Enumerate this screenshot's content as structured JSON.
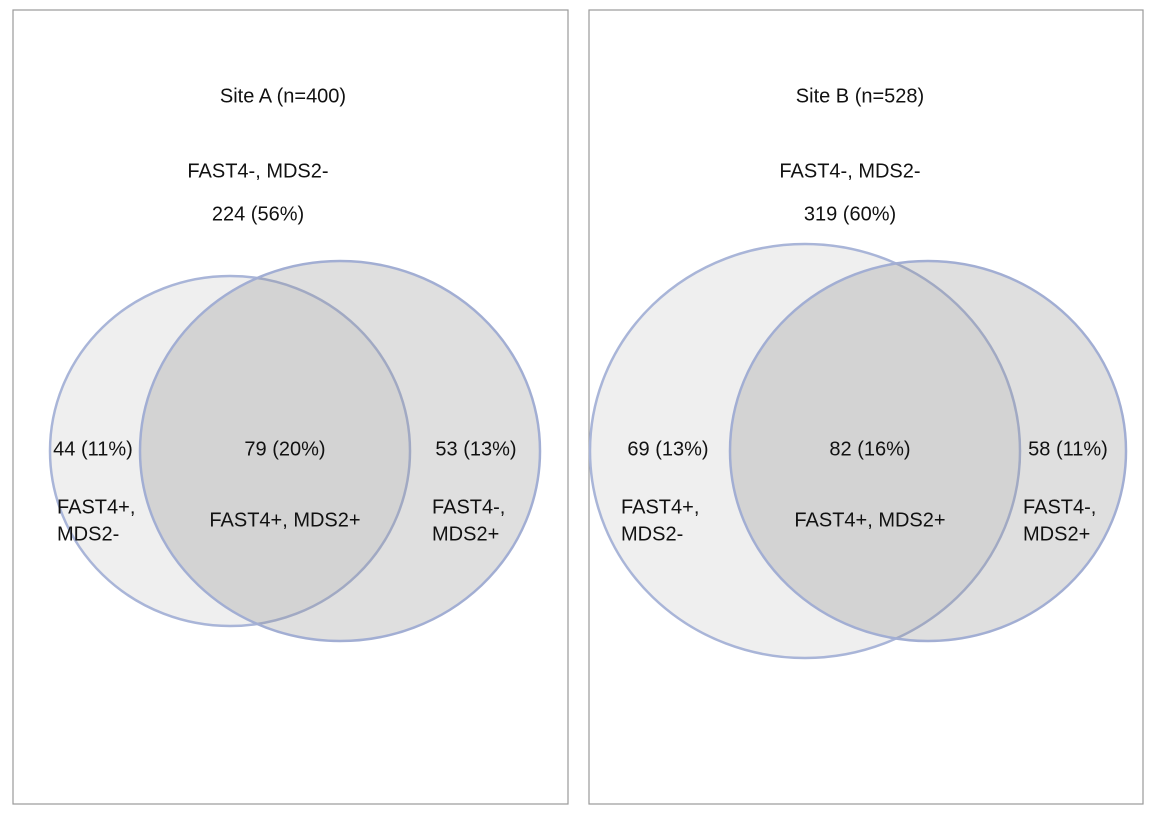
{
  "panels": [
    {
      "title": "Site A (n=400)",
      "outside": {
        "label": "FAST4-, MDS2-",
        "count": "224 (56%)"
      },
      "left": {
        "count": "44 (11%)",
        "label": [
          "FAST4+,",
          "MDS2-"
        ]
      },
      "both": {
        "count": "79 (20%)",
        "label": "FAST4+, MDS2+"
      },
      "right": {
        "count": "53 (13%)",
        "label": [
          "FAST4-,",
          "MDS2+"
        ]
      }
    },
    {
      "title": "Site B (n=528)",
      "outside": {
        "label": "FAST4-, MDS2-",
        "count": "319 (60%)"
      },
      "left": {
        "count": "69 (13%)",
        "label": [
          "FAST4+,",
          "MDS2-"
        ]
      },
      "both": {
        "count": "82 (16%)",
        "label": "FAST4+, MDS2+"
      },
      "right": {
        "count": "58 (11%)",
        "label": [
          "FAST4-,",
          "MDS2+"
        ]
      }
    }
  ]
}
